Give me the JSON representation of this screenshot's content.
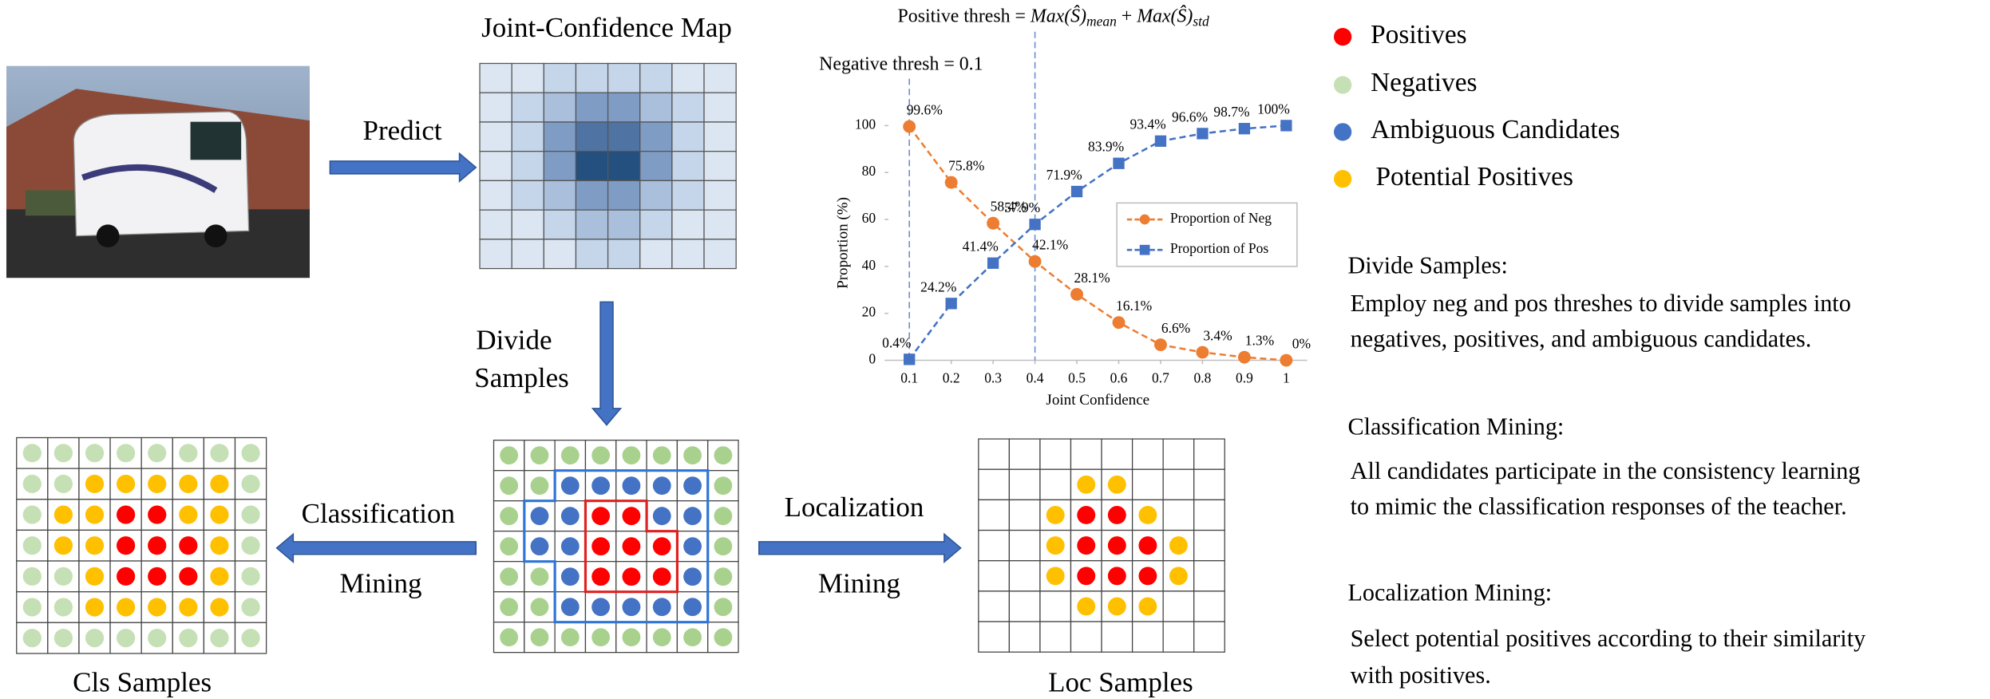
{
  "predict_label": "Predict",
  "map_title": "Joint-Confidence Map",
  "divide_label": [
    "Divide",
    "Samples"
  ],
  "classification_label": [
    "Classification",
    "Mining"
  ],
  "localization_label": [
    "Localization",
    "Mining"
  ],
  "captions": {
    "cls": "Cls Samples",
    "loc": "Loc Samples"
  },
  "legend": [
    "Positives",
    "Negatives",
    "Ambiguous Candidates",
    "Potential Positives"
  ],
  "notes": [
    {
      "heading": "Divide Samples:",
      "lines": [
        "Employ neg and pos threshes to divide samples into",
        "negatives, positives, and ambiguous candidates."
      ]
    },
    {
      "heading": "Classification Mining:",
      "lines": [
        "All candidates participate in the consistency learning",
        "to mimic the classification responses of the teacher."
      ]
    },
    {
      "heading": "Localization Mining:",
      "lines": [
        "Select potential positives according to their similarity",
        "with positives."
      ]
    }
  ],
  "chart_data": {
    "type": "line",
    "x_label": "Joint Confidence",
    "y_label": "Proportion (%)",
    "x": [
      0.1,
      0.2,
      0.3,
      0.4,
      0.5,
      0.6,
      0.7,
      0.8,
      0.9,
      1
    ],
    "xlim": [
      0.05,
      1.05
    ],
    "xticks": [
      0.1,
      0.2,
      0.3,
      0.4,
      0.5,
      0.6,
      0.7,
      0.8,
      0.9,
      1
    ],
    "ylim": [
      0,
      100
    ],
    "yticks": [
      0,
      20,
      40,
      60,
      80,
      100
    ],
    "series": [
      {
        "name": "Proportion of Neg",
        "color": "#ed7d31",
        "marker": "circle",
        "values": [
          99.6,
          75.8,
          58.4,
          42.1,
          28.1,
          16.1,
          6.6,
          3.4,
          1.3,
          0
        ],
        "value_labels": [
          "99.6%",
          "75.8%",
          "58.4%",
          "42.1%",
          "28.1%",
          "16.1%",
          "6.6%",
          "3.4%",
          "1.3%",
          "0%"
        ]
      },
      {
        "name": "Proportion of Pos",
        "color": "#4472c4",
        "marker": "square",
        "values": [
          0.4,
          24.2,
          41.4,
          57.9,
          71.9,
          83.9,
          93.4,
          96.6,
          98.7,
          100
        ],
        "value_labels": [
          "0.4%",
          "24.2%",
          "41.4%",
          "57.9%",
          "71.9%",
          "83.9%",
          "93.4%",
          "96.6%",
          "98.7%",
          "100%"
        ]
      }
    ],
    "annotations": [
      {
        "text": "Negative thresh = ",
        "x": 0.1
      },
      {
        "parts": [
          "Positive thresh = ",
          "Max(Ŝ)",
          "mean",
          " + ",
          "Max(Ŝ)",
          "std"
        ],
        "x": 0.4
      }
    ]
  }
}
